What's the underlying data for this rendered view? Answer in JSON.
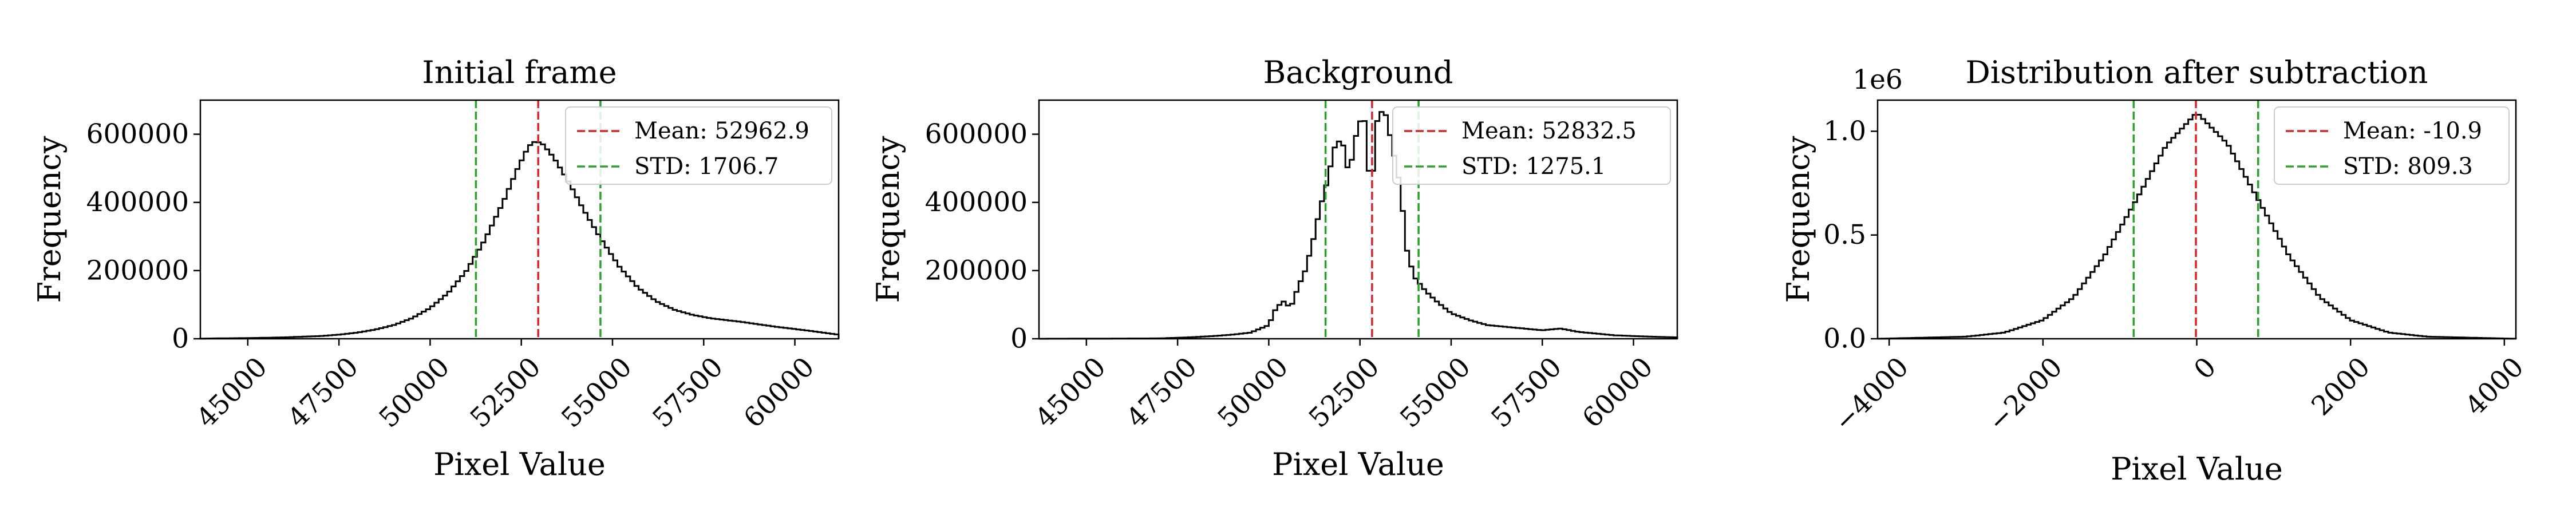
{
  "chart_data": [
    {
      "type": "histogram",
      "title": "Initial frame",
      "xlabel": "Pixel Value",
      "ylabel": "Frequency",
      "xlim": [
        43700,
        61200
      ],
      "ylim": [
        0,
        700000
      ],
      "xticks": [
        45000,
        47500,
        50000,
        52500,
        55000,
        57500,
        60000
      ],
      "xtick_labels": [
        "45000",
        "47500",
        "50000",
        "52500",
        "55000",
        "57500",
        "60000"
      ],
      "yticks": [
        0,
        200000,
        400000,
        600000
      ],
      "ytick_labels": [
        "0",
        "200000",
        "400000",
        "600000"
      ],
      "xtick_rotation": 45,
      "legend_position": "upper right",
      "legend": [
        {
          "label": "Mean: 52962.9",
          "color": "#d62728",
          "style": "dashed"
        },
        {
          "label": "STD: 1706.7",
          "color": "#2ca02c",
          "style": "dashed"
        }
      ],
      "mean": 52962.9,
      "std": 1706.7,
      "vlines": [
        {
          "x": 52962.9,
          "color": "#d62728"
        },
        {
          "x": 51256.2,
          "color": "#2ca02c"
        },
        {
          "x": 54669.6,
          "color": "#2ca02c"
        }
      ],
      "curve": [
        [
          43700,
          500
        ],
        [
          45000,
          2000
        ],
        [
          46000,
          4000
        ],
        [
          47000,
          8000
        ],
        [
          47500,
          12000
        ],
        [
          48000,
          18000
        ],
        [
          48500,
          27000
        ],
        [
          49000,
          40000
        ],
        [
          49500,
          60000
        ],
        [
          50000,
          90000
        ],
        [
          50500,
          135000
        ],
        [
          51000,
          200000
        ],
        [
          51500,
          290000
        ],
        [
          52000,
          400000
        ],
        [
          52400,
          500000
        ],
        [
          52700,
          565000
        ],
        [
          52900,
          580000
        ],
        [
          53100,
          570000
        ],
        [
          53400,
          530000
        ],
        [
          53800,
          460000
        ],
        [
          54200,
          380000
        ],
        [
          54700,
          290000
        ],
        [
          55200,
          210000
        ],
        [
          55700,
          150000
        ],
        [
          56200,
          110000
        ],
        [
          56700,
          85000
        ],
        [
          57200,
          70000
        ],
        [
          57700,
          60000
        ],
        [
          58500,
          50000
        ],
        [
          59500,
          35000
        ],
        [
          60500,
          22000
        ],
        [
          61200,
          12000
        ]
      ]
    },
    {
      "type": "histogram",
      "title": "Background",
      "xlabel": "Pixel Value",
      "ylabel": "Frequency",
      "xlim": [
        43700,
        61200
      ],
      "ylim": [
        0,
        700000
      ],
      "xticks": [
        45000,
        47500,
        50000,
        52500,
        55000,
        57500,
        60000
      ],
      "xtick_labels": [
        "45000",
        "47500",
        "50000",
        "52500",
        "55000",
        "57500",
        "60000"
      ],
      "yticks": [
        0,
        200000,
        400000,
        600000
      ],
      "ytick_labels": [
        "0",
        "200000",
        "400000",
        "600000"
      ],
      "xtick_rotation": 45,
      "legend_position": "upper right",
      "legend": [
        {
          "label": "Mean: 52832.5",
          "color": "#d62728",
          "style": "dashed"
        },
        {
          "label": "STD: 1275.1",
          "color": "#2ca02c",
          "style": "dashed"
        }
      ],
      "mean": 52832.5,
      "std": 1275.1,
      "vlines": [
        {
          "x": 52832.5,
          "color": "#d62728"
        },
        {
          "x": 51557.4,
          "color": "#2ca02c"
        },
        {
          "x": 54107.6,
          "color": "#2ca02c"
        }
      ],
      "curve": [
        [
          43700,
          0
        ],
        [
          47000,
          1000
        ],
        [
          47500,
          3000
        ],
        [
          48000,
          5000
        ],
        [
          48500,
          8000
        ],
        [
          49000,
          12000
        ],
        [
          49500,
          18000
        ],
        [
          50000,
          40000
        ],
        [
          50200,
          90000
        ],
        [
          50400,
          110000
        ],
        [
          50600,
          90000
        ],
        [
          50800,
          150000
        ],
        [
          51000,
          200000
        ],
        [
          51200,
          280000
        ],
        [
          51400,
          380000
        ],
        [
          51600,
          460000
        ],
        [
          51800,
          560000
        ],
        [
          52000,
          590000
        ],
        [
          52200,
          480000
        ],
        [
          52400,
          600000
        ],
        [
          52600,
          670000
        ],
        [
          52800,
          420000
        ],
        [
          53000,
          670000
        ],
        [
          53200,
          660000
        ],
        [
          53400,
          560000
        ],
        [
          53600,
          450000
        ],
        [
          53800,
          250000
        ],
        [
          54000,
          180000
        ],
        [
          54300,
          140000
        ],
        [
          54600,
          110000
        ],
        [
          55000,
          75000
        ],
        [
          55500,
          55000
        ],
        [
          56000,
          40000
        ],
        [
          56500,
          35000
        ],
        [
          57000,
          30000
        ],
        [
          57500,
          25000
        ],
        [
          58000,
          30000
        ],
        [
          58500,
          20000
        ],
        [
          59000,
          15000
        ],
        [
          59500,
          10000
        ],
        [
          60500,
          6000
        ],
        [
          61200,
          4000
        ]
      ]
    },
    {
      "type": "histogram",
      "title": "Distribution after subtraction",
      "xlabel": "Pixel Value",
      "ylabel": "Frequency",
      "y_offset_label": "1e6",
      "xlim": [
        -4150,
        4150
      ],
      "ylim": [
        0,
        1.15
      ],
      "xticks": [
        -4000,
        -2000,
        0,
        2000,
        4000
      ],
      "xtick_labels": [
        "−4000",
        "−2000",
        "0",
        "2000",
        "4000"
      ],
      "yticks": [
        0.0,
        0.5,
        1.0
      ],
      "ytick_labels": [
        "0.0",
        "0.5",
        "1.0"
      ],
      "xtick_rotation": 45,
      "legend_position": "upper right",
      "legend": [
        {
          "label": "Mean: -10.9",
          "color": "#d62728",
          "style": "dashed"
        },
        {
          "label": "STD: 809.3",
          "color": "#2ca02c",
          "style": "dashed"
        }
      ],
      "mean": -10.9,
      "std": 809.3,
      "vlines": [
        {
          "x": -10.9,
          "color": "#d62728"
        },
        {
          "x": -820.2,
          "color": "#2ca02c"
        },
        {
          "x": 798.4,
          "color": "#2ca02c"
        }
      ],
      "curve_note": "values in units of 1e6",
      "curve": [
        [
          -4150,
          0.0
        ],
        [
          -3000,
          0.01
        ],
        [
          -2500,
          0.03
        ],
        [
          -2000,
          0.09
        ],
        [
          -1600,
          0.2
        ],
        [
          -1200,
          0.4
        ],
        [
          -800,
          0.66
        ],
        [
          -400,
          0.93
        ],
        [
          0,
          1.09
        ],
        [
          400,
          0.94
        ],
        [
          800,
          0.67
        ],
        [
          1200,
          0.4
        ],
        [
          1600,
          0.2
        ],
        [
          2000,
          0.09
        ],
        [
          2500,
          0.03
        ],
        [
          3000,
          0.01
        ],
        [
          4150,
          0.0
        ]
      ]
    }
  ]
}
